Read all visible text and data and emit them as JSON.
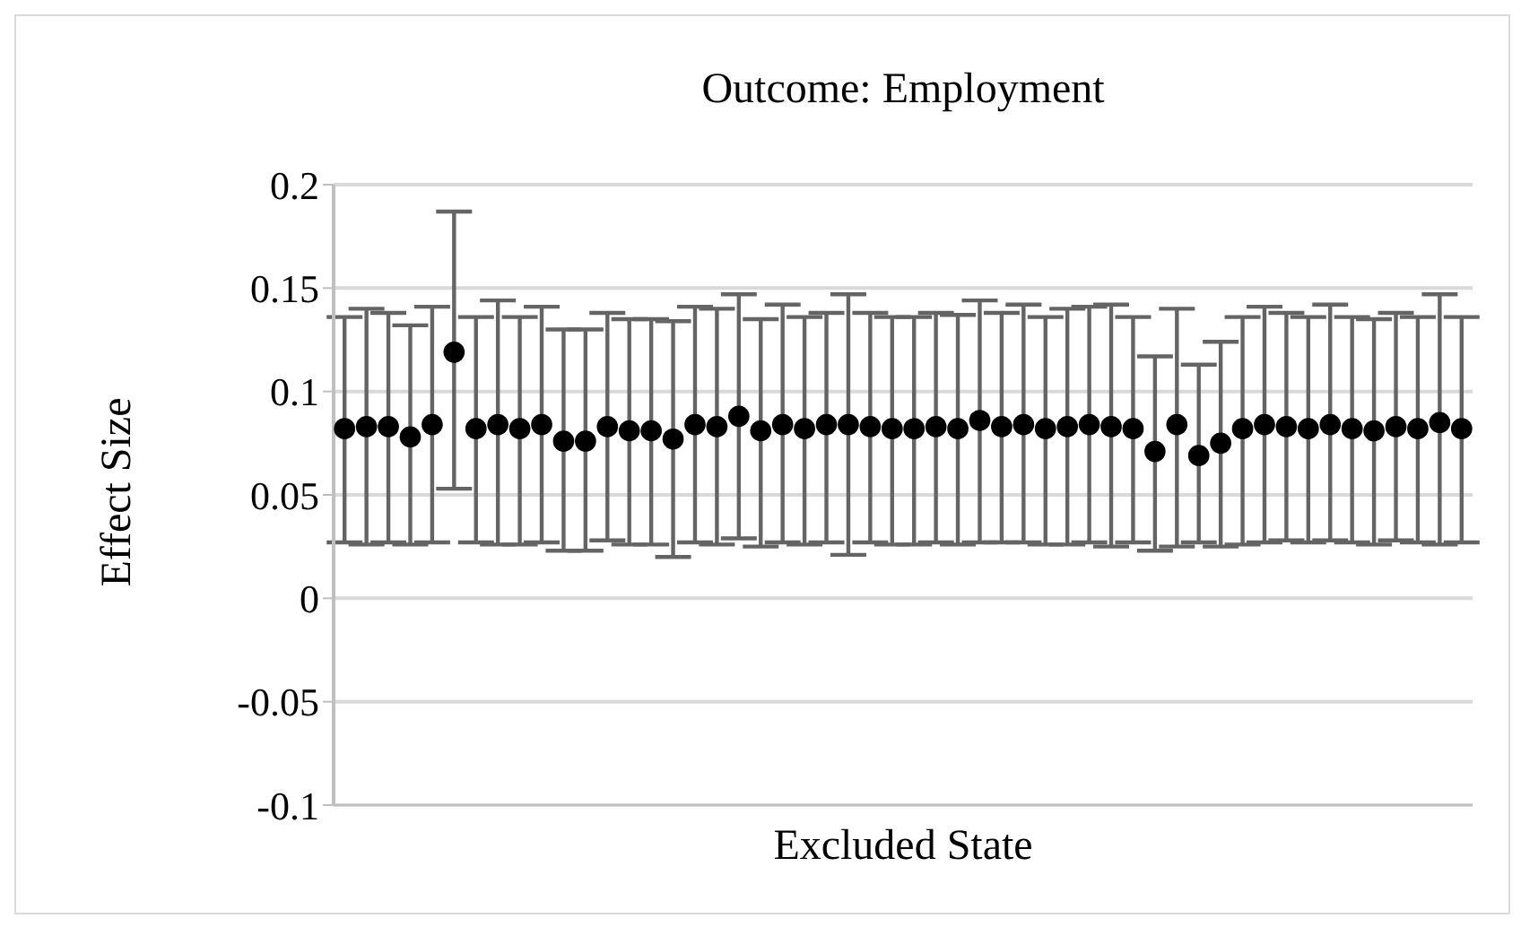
{
  "chart_data": {
    "type": "scatter",
    "title": "Outcome: Employment",
    "xlabel": "Excluded State",
    "ylabel": "Effect Size",
    "categories": [
      null,
      null,
      null,
      null,
      null,
      null,
      null,
      null,
      null,
      null,
      null,
      null,
      null,
      null,
      null,
      null,
      null,
      null,
      null,
      null,
      null,
      null,
      null,
      null,
      null,
      null,
      null,
      null,
      null,
      null,
      null,
      null,
      null,
      null,
      null,
      null,
      null,
      null,
      null,
      null,
      null,
      null,
      null,
      null,
      null,
      null,
      null,
      null,
      null,
      null,
      null,
      null
    ],
    "series": [
      {
        "color": "#000000",
        "values": [
          0.082,
          0.083,
          0.083,
          0.078,
          0.084,
          0.119,
          0.082,
          0.084,
          0.082,
          0.084,
          0.076,
          0.076,
          0.083,
          0.081,
          0.081,
          0.077,
          0.084,
          0.083,
          0.088,
          0.081,
          0.084,
          0.082,
          0.084,
          0.084,
          0.083,
          0.082,
          0.082,
          0.083,
          0.082,
          0.086,
          0.083,
          0.084,
          0.082,
          0.083,
          0.084,
          0.083,
          0.082,
          0.071,
          0.084,
          0.069,
          0.075,
          0.082,
          0.084,
          0.083,
          0.082,
          0.084,
          0.082,
          0.081,
          0.083,
          0.082,
          0.085,
          0.082
        ],
        "errors": [
          [
            0.027,
            0.136
          ],
          [
            0.026,
            0.14
          ],
          [
            0.027,
            0.138
          ],
          [
            0.026,
            0.132
          ],
          [
            0.027,
            0.141
          ],
          [
            0.053,
            0.187
          ],
          [
            0.027,
            0.136
          ],
          [
            0.026,
            0.144
          ],
          [
            0.026,
            0.136
          ],
          [
            0.027,
            0.141
          ],
          [
            0.023,
            0.13
          ],
          [
            0.023,
            0.13
          ],
          [
            0.028,
            0.138
          ],
          [
            0.026,
            0.135
          ],
          [
            0.026,
            0.135
          ],
          [
            0.02,
            0.134
          ],
          [
            0.027,
            0.141
          ],
          [
            0.026,
            0.14
          ],
          [
            0.029,
            0.147
          ],
          [
            0.025,
            0.135
          ],
          [
            0.027,
            0.142
          ],
          [
            0.026,
            0.136
          ],
          [
            0.027,
            0.138
          ],
          [
            0.021,
            0.147
          ],
          [
            0.027,
            0.138
          ],
          [
            0.026,
            0.136
          ],
          [
            0.026,
            0.136
          ],
          [
            0.027,
            0.138
          ],
          [
            0.026,
            0.137
          ],
          [
            0.027,
            0.144
          ],
          [
            0.027,
            0.138
          ],
          [
            0.027,
            0.142
          ],
          [
            0.026,
            0.136
          ],
          [
            0.026,
            0.14
          ],
          [
            0.027,
            0.141
          ],
          [
            0.025,
            0.142
          ],
          [
            0.027,
            0.136
          ],
          [
            0.023,
            0.117
          ],
          [
            0.025,
            0.14
          ],
          [
            0.027,
            0.113
          ],
          [
            0.025,
            0.124
          ],
          [
            0.026,
            0.136
          ],
          [
            0.027,
            0.141
          ],
          [
            0.028,
            0.138
          ],
          [
            0.027,
            0.136
          ],
          [
            0.028,
            0.142
          ],
          [
            0.027,
            0.136
          ],
          [
            0.026,
            0.135
          ],
          [
            0.028,
            0.138
          ],
          [
            0.027,
            0.136
          ],
          [
            0.026,
            0.147
          ],
          [
            0.027,
            0.136
          ]
        ]
      }
    ],
    "ylim": [
      -0.1,
      0.2
    ],
    "yticks": [
      -0.1,
      -0.05,
      0,
      0.05,
      0.1,
      0.15,
      0.2
    ],
    "grid": true,
    "marker": "circle",
    "tick_labels": "y"
  }
}
